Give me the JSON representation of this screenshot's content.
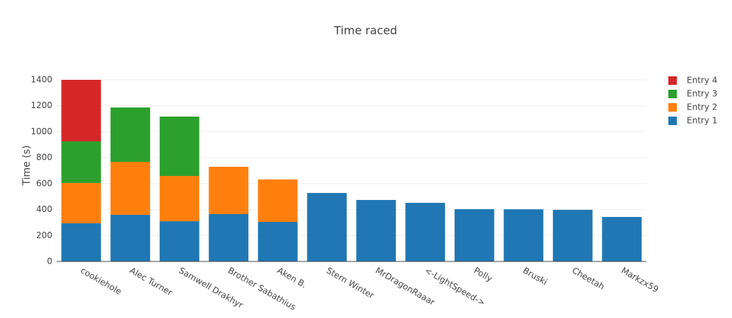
{
  "chart_data": {
    "type": "stacked-bar",
    "title": "Time raced",
    "y_label": "Time (s)",
    "categories": [
      "cookiehole",
      "Alec Turner",
      "Samwell Drakhyr",
      "Brother Sabathius",
      "Aken B.",
      "Stern Winter",
      "MrDragonRaaar",
      "<-LightSpeed->",
      "Polly",
      "Bruski",
      "Cheetah",
      "Markzx59"
    ],
    "series": [
      {
        "name": "Entry 1",
        "color": "#1f77b4",
        "values": [
          294,
          360,
          310,
          365,
          305,
          528,
          474,
          452,
          403,
          402,
          398,
          343
        ]
      },
      {
        "name": "Entry 2",
        "color": "#ff7f0e",
        "values": [
          311,
          408,
          349,
          365,
          327,
          null,
          null,
          null,
          null,
          null,
          null,
          null
        ]
      },
      {
        "name": "Entry 3",
        "color": "#2ca02c",
        "values": [
          321,
          419,
          458,
          null,
          null,
          null,
          null,
          null,
          null,
          null,
          null,
          null
        ]
      },
      {
        "name": "Entry 4",
        "color": "#d62728",
        "values": [
          474,
          null,
          null,
          null,
          null,
          null,
          null,
          null,
          null,
          null,
          null,
          null
        ]
      }
    ],
    "ylim": [
      0,
      1400
    ],
    "yticks": [
      0,
      200,
      400,
      600,
      800,
      1000,
      1200,
      1400
    ],
    "grid": true
  }
}
